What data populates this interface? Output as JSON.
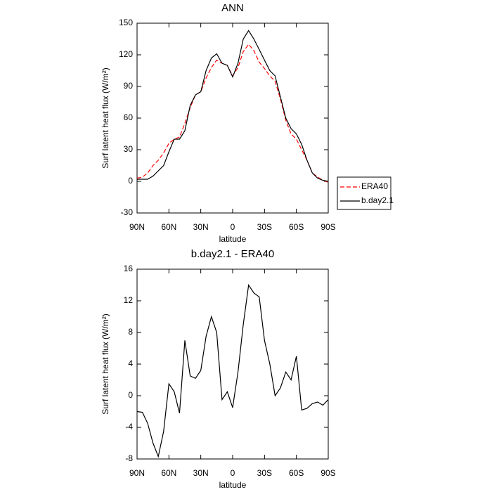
{
  "chart_data": [
    {
      "type": "line",
      "title": "ANN",
      "x_label": "latitude",
      "y_label": "Surf latent heat flux (W/m²)",
      "x": [
        90,
        85,
        80,
        75,
        70,
        65,
        60,
        55,
        50,
        45,
        40,
        35,
        30,
        25,
        20,
        15,
        10,
        5,
        0,
        -5,
        -10,
        -15,
        -20,
        -25,
        -30,
        -35,
        -40,
        -45,
        -50,
        -55,
        -60,
        -65,
        -70,
        -75,
        -80,
        -85,
        -90
      ],
      "series": [
        {
          "name": "ERA40",
          "color": "#ff0000",
          "linestyle": "dashed",
          "values": [
            3,
            4,
            8,
            15,
            20,
            27,
            36,
            40,
            42,
            55,
            70,
            82,
            85,
            98,
            108,
            115,
            112,
            110,
            100,
            108,
            123,
            130,
            124,
            113,
            107,
            100,
            95,
            78,
            58,
            45,
            40,
            30,
            20,
            8,
            4,
            1,
            -1
          ]
        },
        {
          "name": "b.day2.1",
          "color": "#000000",
          "linestyle": "solid",
          "values": [
            2,
            2,
            2,
            5,
            10,
            15,
            28,
            40,
            40,
            48,
            72,
            82,
            85,
            105,
            117,
            121,
            112,
            110,
            99,
            112,
            135,
            143,
            135,
            125,
            115,
            105,
            100,
            80,
            60,
            50,
            45,
            35,
            20,
            8,
            3,
            1,
            0
          ]
        }
      ],
      "xlim": [
        90,
        -90
      ],
      "xticks": [
        {
          "value": 90,
          "label": "90N"
        },
        {
          "value": 60,
          "label": "60N"
        },
        {
          "value": 30,
          "label": "30N"
        },
        0,
        {
          "value": -30,
          "label": "30S"
        },
        {
          "value": -60,
          "label": "60S"
        },
        {
          "value": -90,
          "label": "90S"
        }
      ],
      "ylim": [
        -30,
        150
      ],
      "yticks": [
        -30,
        0,
        30,
        60,
        90,
        120,
        150
      ],
      "legend": "right"
    },
    {
      "type": "line",
      "title": "b.day2.1 - ERA40",
      "x_label": "latitude",
      "y_label": "Surf latent heat flux (W/m²)",
      "x": [
        90,
        85,
        80,
        75,
        70,
        65,
        60,
        55,
        50,
        45,
        40,
        35,
        30,
        25,
        20,
        15,
        10,
        5,
        0,
        -5,
        -10,
        -15,
        -20,
        -25,
        -30,
        -35,
        -40,
        -45,
        -50,
        -55,
        -60,
        -65,
        -70,
        -75,
        -80,
        -85,
        -90
      ],
      "color": "#000000",
      "linestyle": "solid",
      "values": [
        -2,
        -2.1,
        -3.5,
        -6,
        -7.7,
        -4.5,
        1.5,
        0.5,
        -2.2,
        7,
        2.5,
        2.2,
        3.2,
        7.5,
        10,
        8,
        -0.5,
        0.5,
        -1.5,
        3,
        9,
        14,
        13,
        12.5,
        7,
        4,
        0,
        1,
        3,
        2,
        5,
        -1.8,
        -1.6,
        -1,
        -0.8,
        -1.2,
        -0.5
      ],
      "xlim": [
        90,
        -90
      ],
      "xticks": [
        {
          "value": 90,
          "label": "90N"
        },
        {
          "value": 60,
          "label": "60N"
        },
        {
          "value": 30,
          "label": "30N"
        },
        0,
        {
          "value": -30,
          "label": "30S"
        },
        {
          "value": -60,
          "label": "60S"
        },
        {
          "value": -90,
          "label": "90S"
        }
      ],
      "ylim": [
        -8,
        16
      ],
      "yticks": [
        -8,
        -4,
        0,
        4,
        8,
        12,
        16
      ]
    }
  ]
}
